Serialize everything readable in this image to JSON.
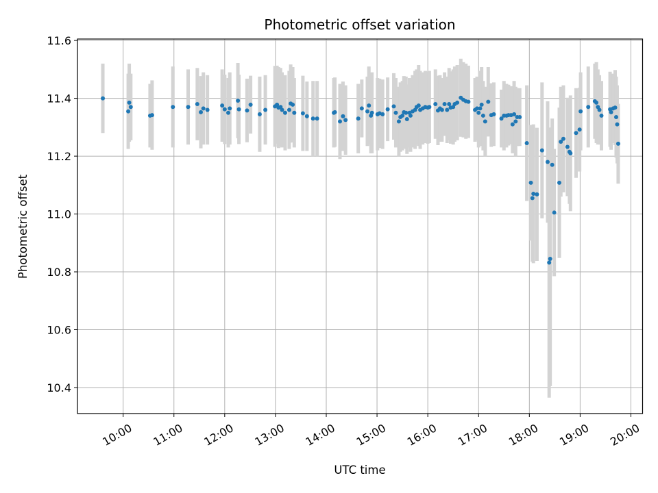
{
  "chart_data": {
    "type": "scatter",
    "title": "Photometric offset variation",
    "xlabel": "UTC time",
    "ylabel": "Photometric offset",
    "x_unit": "hours UTC",
    "xlim": [
      9.1,
      20.23
    ],
    "ylim": [
      10.31,
      11.605
    ],
    "xticks": [
      10,
      11,
      12,
      13,
      14,
      15,
      16,
      17,
      18,
      19,
      20
    ],
    "xtick_labels": [
      "10:00",
      "11:00",
      "12:00",
      "13:00",
      "14:00",
      "15:00",
      "16:00",
      "17:00",
      "18:00",
      "19:00",
      "20:00"
    ],
    "yticks": [
      10.4,
      10.6,
      10.8,
      11.0,
      11.2,
      11.4,
      11.6
    ],
    "ytick_labels": [
      "10.4",
      "10.6",
      "10.8",
      "11.0",
      "11.2",
      "11.4",
      "11.6"
    ],
    "grid": true,
    "colors": {
      "point": "#1f77b4",
      "errorbar": "#d3d3d3",
      "grid": "#b0b0b0",
      "frame": "#000000"
    },
    "series": [
      {
        "points": [
          [
            9.6,
            11.4,
            0.12
          ],
          [
            10.1,
            11.355,
            0.13
          ],
          [
            10.12,
            11.385,
            0.135
          ],
          [
            10.15,
            11.37,
            0.115
          ],
          [
            10.53,
            11.34,
            0.11
          ],
          [
            10.57,
            11.342,
            0.12
          ],
          [
            10.98,
            11.37,
            0.14
          ],
          [
            11.28,
            11.37,
            0.13
          ],
          [
            11.46,
            11.38,
            0.125
          ],
          [
            11.53,
            11.352,
            0.125
          ],
          [
            11.58,
            11.365,
            0.125
          ],
          [
            11.66,
            11.36,
            0.12
          ],
          [
            11.95,
            11.375,
            0.125
          ],
          [
            12.0,
            11.362,
            0.12
          ],
          [
            12.07,
            11.35,
            0.12
          ],
          [
            12.1,
            11.365,
            0.125
          ],
          [
            12.26,
            11.392,
            0.13
          ],
          [
            12.28,
            11.362,
            0.12
          ],
          [
            12.44,
            11.358,
            0.11
          ],
          [
            12.51,
            11.378,
            0.1
          ],
          [
            12.69,
            11.345,
            0.13
          ],
          [
            12.8,
            11.36,
            0.12
          ],
          [
            12.99,
            11.372,
            0.14
          ],
          [
            13.03,
            11.378,
            0.135
          ],
          [
            13.06,
            11.368,
            0.14
          ],
          [
            13.1,
            11.37,
            0.135
          ],
          [
            13.13,
            11.36,
            0.13
          ],
          [
            13.19,
            11.35,
            0.13
          ],
          [
            13.27,
            11.36,
            0.135
          ],
          [
            13.3,
            11.382,
            0.135
          ],
          [
            13.34,
            11.378,
            0.13
          ],
          [
            13.37,
            11.35,
            0.12
          ],
          [
            13.54,
            11.348,
            0.13
          ],
          [
            13.62,
            11.338,
            0.12
          ],
          [
            13.74,
            11.33,
            0.13
          ],
          [
            13.82,
            11.33,
            0.13
          ],
          [
            14.15,
            11.35,
            0.12
          ],
          [
            14.17,
            11.352,
            0.12
          ],
          [
            14.27,
            11.32,
            0.13
          ],
          [
            14.33,
            11.338,
            0.12
          ],
          [
            14.38,
            11.325,
            0.12
          ],
          [
            14.63,
            11.33,
            0.12
          ],
          [
            14.7,
            11.365,
            0.1
          ],
          [
            14.81,
            11.355,
            0.12
          ],
          [
            14.84,
            11.375,
            0.135
          ],
          [
            14.88,
            11.34,
            0.13
          ],
          [
            14.9,
            11.35,
            0.14
          ],
          [
            15.01,
            11.345,
            0.125
          ],
          [
            15.05,
            11.348,
            0.12
          ],
          [
            15.11,
            11.345,
            0.12
          ],
          [
            15.21,
            11.362,
            0.11
          ],
          [
            15.33,
            11.372,
            0.115
          ],
          [
            15.37,
            11.35,
            0.12
          ],
          [
            15.43,
            11.32,
            0.12
          ],
          [
            15.46,
            11.335,
            0.12
          ],
          [
            15.5,
            11.34,
            0.12
          ],
          [
            15.53,
            11.352,
            0.125
          ],
          [
            15.57,
            11.35,
            0.125
          ],
          [
            15.59,
            11.328,
            0.12
          ],
          [
            15.64,
            11.35,
            0.12
          ],
          [
            15.66,
            11.34,
            0.125
          ],
          [
            15.7,
            11.355,
            0.125
          ],
          [
            15.75,
            11.36,
            0.135
          ],
          [
            15.78,
            11.37,
            0.13
          ],
          [
            15.82,
            11.375,
            0.14
          ],
          [
            15.85,
            11.36,
            0.135
          ],
          [
            15.9,
            11.365,
            0.125
          ],
          [
            15.95,
            11.37,
            0.125
          ],
          [
            16.0,
            11.368,
            0.125
          ],
          [
            16.03,
            11.37,
            0.125
          ],
          [
            16.15,
            11.38,
            0.12
          ],
          [
            16.2,
            11.358,
            0.12
          ],
          [
            16.24,
            11.365,
            0.115
          ],
          [
            16.28,
            11.36,
            0.11
          ],
          [
            16.33,
            11.38,
            0.11
          ],
          [
            16.38,
            11.36,
            0.115
          ],
          [
            16.42,
            11.38,
            0.125
          ],
          [
            16.45,
            11.368,
            0.125
          ],
          [
            16.5,
            11.37,
            0.13
          ],
          [
            16.53,
            11.38,
            0.13
          ],
          [
            16.58,
            11.385,
            0.13
          ],
          [
            16.65,
            11.402,
            0.135
          ],
          [
            16.7,
            11.395,
            0.13
          ],
          [
            16.75,
            11.39,
            0.13
          ],
          [
            16.8,
            11.388,
            0.125
          ],
          [
            16.93,
            11.36,
            0.11
          ],
          [
            16.97,
            11.365,
            0.11
          ],
          [
            17.0,
            11.35,
            0.12
          ],
          [
            17.03,
            11.365,
            0.13
          ],
          [
            17.06,
            11.378,
            0.13
          ],
          [
            17.09,
            11.34,
            0.12
          ],
          [
            17.13,
            11.32,
            0.12
          ],
          [
            17.19,
            11.388,
            0.12
          ],
          [
            17.25,
            11.342,
            0.11
          ],
          [
            17.3,
            11.345,
            0.11
          ],
          [
            17.45,
            11.33,
            0.1
          ],
          [
            17.5,
            11.34,
            0.12
          ],
          [
            17.55,
            11.34,
            0.11
          ],
          [
            17.59,
            11.342,
            0.105
          ],
          [
            17.64,
            11.342,
            0.1
          ],
          [
            17.67,
            11.31,
            0.1
          ],
          [
            17.7,
            11.345,
            0.115
          ],
          [
            17.73,
            11.32,
            0.12
          ],
          [
            17.76,
            11.335,
            0.1
          ],
          [
            17.81,
            11.335,
            0.1
          ],
          [
            17.95,
            11.245,
            0.2
          ],
          [
            18.03,
            11.108,
            0.2
          ],
          [
            18.06,
            11.055,
            0.22
          ],
          [
            18.08,
            11.07,
            0.24
          ],
          [
            18.15,
            11.068,
            0.23
          ],
          [
            18.25,
            11.22,
            0.235
          ],
          [
            18.36,
            11.18,
            0.21
          ],
          [
            18.39,
            10.832,
            0.467
          ],
          [
            18.41,
            10.845,
            0.44
          ],
          [
            18.45,
            11.17,
            0.16
          ],
          [
            18.49,
            11.005,
            0.22
          ],
          [
            18.59,
            11.108,
            0.26
          ],
          [
            18.62,
            11.25,
            0.19
          ],
          [
            18.67,
            11.26,
            0.185
          ],
          [
            18.75,
            11.232,
            0.17
          ],
          [
            18.79,
            11.215,
            0.18
          ],
          [
            18.81,
            11.21,
            0.2
          ],
          [
            18.92,
            11.28,
            0.155
          ],
          [
            18.99,
            11.292,
            0.145
          ],
          [
            19.01,
            11.355,
            0.135
          ],
          [
            19.16,
            11.37,
            0.14
          ],
          [
            19.29,
            11.39,
            0.13
          ],
          [
            19.32,
            11.385,
            0.14
          ],
          [
            19.35,
            11.37,
            0.13
          ],
          [
            19.38,
            11.36,
            0.12
          ],
          [
            19.42,
            11.34,
            0.12
          ],
          [
            19.59,
            11.362,
            0.13
          ],
          [
            19.61,
            11.352,
            0.13
          ],
          [
            19.65,
            11.365,
            0.12
          ],
          [
            19.69,
            11.368,
            0.13
          ],
          [
            19.71,
            11.335,
            0.14
          ],
          [
            19.73,
            11.31,
            0.135
          ],
          [
            19.75,
            11.243,
            0.138
          ]
        ]
      }
    ]
  }
}
